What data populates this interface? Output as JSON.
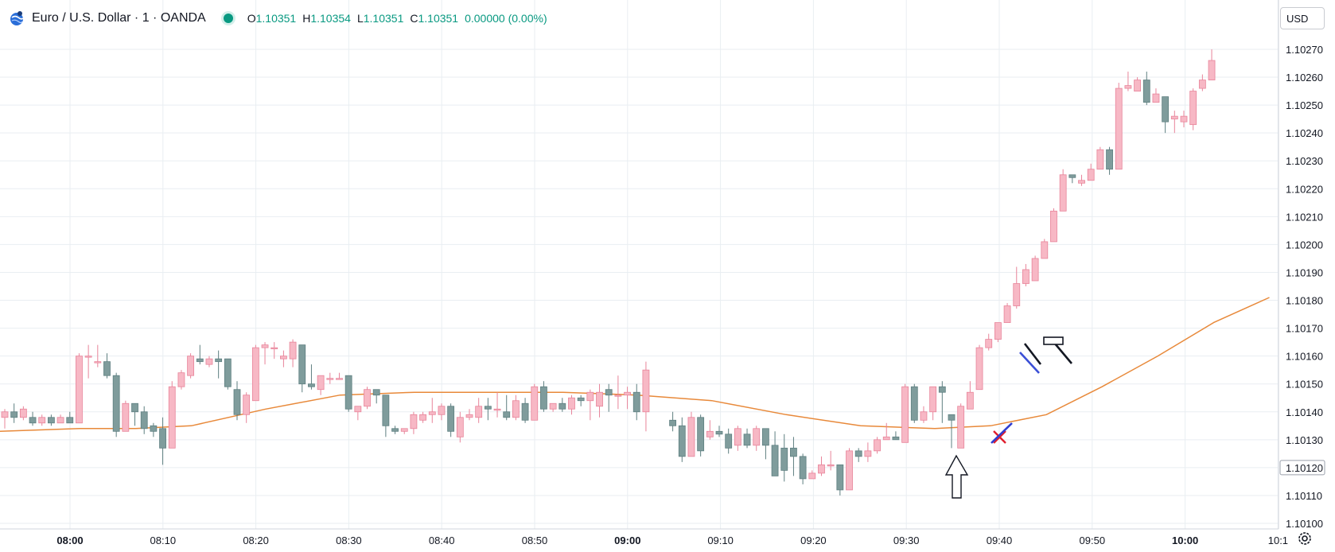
{
  "header": {
    "title": "Euro / U.S. Dollar · 1 · OANDA",
    "ohlc": [
      {
        "k": "O",
        "v": "1.10351"
      },
      {
        "k": "H",
        "v": "1.10354"
      },
      {
        "k": "L",
        "v": "1.10351"
      },
      {
        "k": "C",
        "v": "1.10351"
      }
    ],
    "change": "0.00000 (0.00%)"
  },
  "currency_label": "USD",
  "icons": {
    "logo": "globe-logo-icon",
    "status": "market-status-dot-icon",
    "settings": "gear-icon"
  },
  "colors": {
    "up": "#f7b8c5",
    "up_border": "#e8849a",
    "down": "#7f9c9c",
    "down_border": "#5e7f80",
    "ma_line": "#e8893a",
    "grid": "#e9eef2",
    "last_price_border": "#9aa0ab"
  },
  "chart_data": {
    "type": "candlestick",
    "title": "Euro / U.S. Dollar · 1 · OANDA",
    "x_ticks": [
      {
        "label": "08:00",
        "idx": 0,
        "bold": true
      },
      {
        "label": "08:10",
        "idx": 10,
        "bold": false
      },
      {
        "label": "08:20",
        "idx": 20,
        "bold": false
      },
      {
        "label": "08:30",
        "idx": 30,
        "bold": false
      },
      {
        "label": "08:40",
        "idx": 40,
        "bold": false
      },
      {
        "label": "08:50",
        "idx": 50,
        "bold": false
      },
      {
        "label": "09:00",
        "idx": 60,
        "bold": true
      },
      {
        "label": "09:10",
        "idx": 70,
        "bold": false
      },
      {
        "label": "09:20",
        "idx": 80,
        "bold": false
      },
      {
        "label": "09:30",
        "idx": 90,
        "bold": false
      },
      {
        "label": "09:40",
        "idx": 100,
        "bold": false
      },
      {
        "label": "09:50",
        "idx": 110,
        "bold": false
      },
      {
        "label": "10:00",
        "idx": 120,
        "bold": true
      },
      {
        "label": "10:1",
        "idx": 130,
        "bold": false
      }
    ],
    "y_ticks": [
      "1.10270",
      "1.10260",
      "1.10250",
      "1.10240",
      "1.10230",
      "1.10220",
      "1.10210",
      "1.10200",
      "1.10190",
      "1.10180",
      "1.10170",
      "1.10160",
      "1.10150",
      "1.10140",
      "1.10130",
      "1.10120",
      "1.10110",
      "1.10100"
    ],
    "ylim": [
      1.101,
      1.1027
    ],
    "last_price": "1.10120",
    "candles": [
      [
        1.10138,
        1.10141,
        1.10134,
        1.1014
      ],
      [
        1.1014,
        1.10143,
        1.10136,
        1.10138
      ],
      [
        1.10138,
        1.10142,
        1.10137,
        1.10141
      ],
      [
        1.10138,
        1.1014,
        1.10135,
        1.10136
      ],
      [
        1.10136,
        1.10139,
        1.10135,
        1.10138
      ],
      [
        1.10138,
        1.10139,
        1.10135,
        1.10136
      ],
      [
        1.10136,
        1.10139,
        1.10136,
        1.10138
      ],
      [
        1.10138,
        1.1014,
        1.10136,
        1.10136
      ],
      [
        1.10136,
        1.10161,
        1.10136,
        1.1016
      ],
      [
        1.1016,
        1.10164,
        1.10152,
        1.1016
      ],
      [
        1.10158,
        1.10164,
        1.10156,
        1.10158
      ],
      [
        1.10158,
        1.10161,
        1.10152,
        1.10153
      ],
      [
        1.10153,
        1.10154,
        1.10131,
        1.10133
      ],
      [
        1.10133,
        1.10144,
        1.10133,
        1.10143
      ],
      [
        1.10143,
        1.10143,
        1.10135,
        1.1014
      ],
      [
        1.1014,
        1.10142,
        1.10132,
        1.10134
      ],
      [
        1.10135,
        1.10136,
        1.10131,
        1.10133
      ],
      [
        1.10134,
        1.10138,
        1.10121,
        1.10127
      ],
      [
        1.10127,
        1.10151,
        1.10127,
        1.10149
      ],
      [
        1.10149,
        1.10155,
        1.10148,
        1.10154
      ],
      [
        1.10153,
        1.10161,
        1.10152,
        1.1016
      ],
      [
        1.10159,
        1.10164,
        1.10157,
        1.10158
      ],
      [
        1.10157,
        1.1016,
        1.10156,
        1.10159
      ],
      [
        1.10159,
        1.10162,
        1.10152,
        1.10158
      ],
      [
        1.10159,
        1.10159,
        1.10148,
        1.10149
      ],
      [
        1.10148,
        1.10151,
        1.10137,
        1.10139
      ],
      [
        1.10139,
        1.10147,
        1.10136,
        1.10146
      ],
      [
        1.10144,
        1.10164,
        1.10144,
        1.10163
      ],
      [
        1.10163,
        1.10165,
        1.10157,
        1.10164
      ],
      [
        1.10163,
        1.10165,
        1.10159,
        1.10163
      ],
      [
        1.10159,
        1.10162,
        1.10156,
        1.1016
      ],
      [
        1.10159,
        1.10166,
        1.10156,
        1.10165
      ],
      [
        1.10164,
        1.10164,
        1.10147,
        1.1015
      ],
      [
        1.1015,
        1.10157,
        1.10148,
        1.10149
      ],
      [
        1.10148,
        1.10153,
        1.10146,
        1.10153
      ],
      [
        1.10152,
        1.10154,
        1.1015,
        1.10152
      ],
      [
        1.10152,
        1.10154,
        1.10152,
        1.10152
      ],
      [
        1.10153,
        1.10153,
        1.1014,
        1.10141
      ],
      [
        1.1014,
        1.10142,
        1.10137,
        1.10142
      ],
      [
        1.10142,
        1.10149,
        1.10141,
        1.10148
      ],
      [
        1.10148,
        1.10148,
        1.10143,
        1.10146
      ],
      [
        1.10146,
        1.10146,
        1.10131,
        1.10135
      ],
      [
        1.10134,
        1.10135,
        1.10132,
        1.10133
      ],
      [
        1.10133,
        1.10134,
        1.10132,
        1.10134
      ],
      [
        1.10134,
        1.1014,
        1.10132,
        1.10139
      ],
      [
        1.10137,
        1.1014,
        1.10136,
        1.10139
      ],
      [
        1.10139,
        1.10145,
        1.10136,
        1.1014
      ],
      [
        1.10139,
        1.10143,
        1.10137,
        1.10142
      ],
      [
        1.10142,
        1.10143,
        1.10131,
        1.10133
      ],
      [
        1.10131,
        1.1014,
        1.10129,
        1.10138
      ],
      [
        1.10138,
        1.10141,
        1.10137,
        1.10139
      ],
      [
        1.10138,
        1.10145,
        1.10136,
        1.10142
      ],
      [
        1.10142,
        1.10145,
        1.10137,
        1.10141
      ],
      [
        1.10141,
        1.10147,
        1.10138,
        1.10141
      ],
      [
        1.1014,
        1.10146,
        1.10137,
        1.10138
      ],
      [
        1.10138,
        1.10146,
        1.10137,
        1.10144
      ],
      [
        1.10143,
        1.10145,
        1.10136,
        1.10137
      ],
      [
        1.10137,
        1.1015,
        1.10137,
        1.10149
      ],
      [
        1.10149,
        1.10151,
        1.1014,
        1.10141
      ],
      [
        1.10141,
        1.10143,
        1.1014,
        1.10143
      ],
      [
        1.10143,
        1.10145,
        1.1014,
        1.10141
      ],
      [
        1.10141,
        1.10146,
        1.10139,
        1.10145
      ],
      [
        1.10145,
        1.10146,
        1.10142,
        1.10144
      ],
      [
        1.10144,
        1.10148,
        1.10137,
        1.10147
      ],
      [
        1.10142,
        1.1015,
        1.10138,
        1.10147
      ],
      [
        1.10148,
        1.1015,
        1.1014,
        1.10146
      ],
      [
        1.10146,
        1.10153,
        1.10141,
        1.10146
      ],
      [
        1.10146,
        1.10149,
        1.10141,
        1.10147
      ],
      [
        1.10147,
        1.1015,
        1.10137,
        1.1014
      ],
      [
        1.1014,
        1.10158,
        1.10133,
        1.10155
      ]
    ],
    "ma_points": [
      [
        0,
        1.10133
      ],
      [
        8,
        1.10134
      ],
      [
        14,
        1.10134
      ],
      [
        20,
        1.10135
      ],
      [
        28,
        1.10141
      ],
      [
        36,
        1.10146
      ],
      [
        44,
        1.10147
      ],
      [
        52,
        1.10147
      ],
      [
        60,
        1.10147
      ],
      [
        68,
        1.10146
      ],
      [
        76,
        1.10144
      ],
      [
        84,
        1.10139
      ],
      [
        92,
        1.10135
      ],
      [
        100,
        1.10134
      ],
      [
        106,
        1.10135
      ],
      [
        112,
        1.10139
      ],
      [
        118,
        1.10149
      ],
      [
        124,
        1.1016
      ],
      [
        130,
        1.10172
      ],
      [
        136,
        1.10181
      ]
    ]
  }
}
